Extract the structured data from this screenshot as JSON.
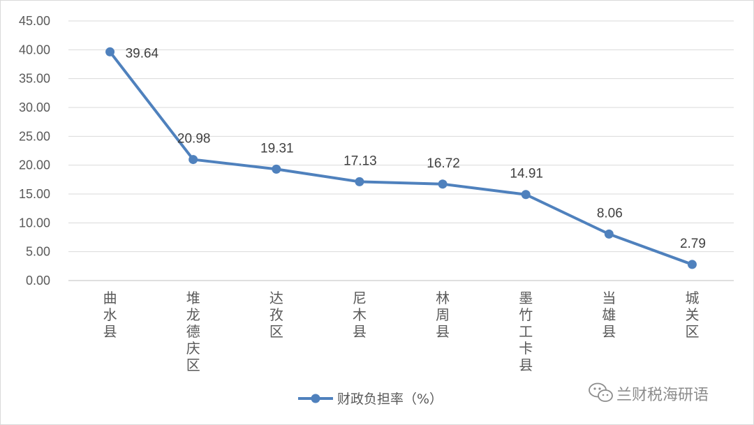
{
  "chart_data": {
    "type": "line",
    "categories": [
      "曲水县",
      "堆龙德庆区",
      "达孜区",
      "尼木县",
      "林周县",
      "墨竹工卡县",
      "当雄县",
      "城关区"
    ],
    "series": [
      {
        "name": "财政负担率（%）",
        "values": [
          39.64,
          20.98,
          19.31,
          17.13,
          16.72,
          14.91,
          8.06,
          2.79
        ],
        "color": "#4f81bd"
      }
    ],
    "data_labels": [
      "39.64",
      "20.98",
      "19.31",
      "17.13",
      "16.72",
      "14.91",
      "8.06",
      "2.79"
    ],
    "yticks": [
      "0.00",
      "5.00",
      "10.00",
      "15.00",
      "20.00",
      "25.00",
      "30.00",
      "35.00",
      "40.00",
      "45.00"
    ],
    "ylim": [
      0,
      45
    ],
    "grid": true,
    "legend": "bottom-center",
    "title": "",
    "xlabel": "",
    "ylabel": ""
  },
  "watermark": {
    "text": "兰财税海研语",
    "icon": "wechat-icon"
  }
}
